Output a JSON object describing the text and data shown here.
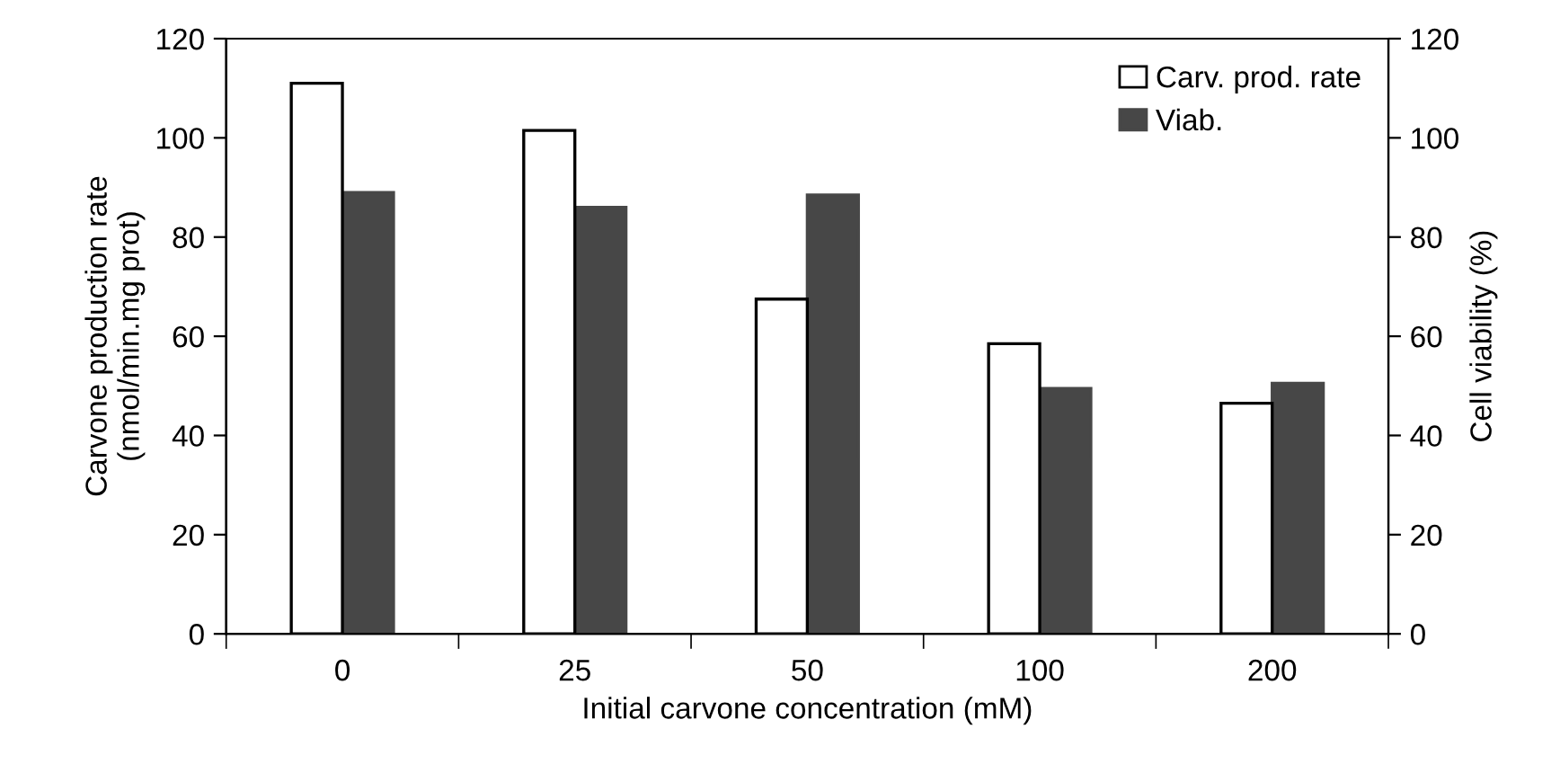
{
  "chart_data": {
    "type": "bar",
    "xlabel": "Initial carvone concentration (mM)",
    "ylabel": "Carvone production rate\n(nmol/min.mg prot)",
    "y2label": "Cell viability (%)",
    "categories": [
      "0",
      "25",
      "50",
      "100",
      "200"
    ],
    "series": [
      {
        "name": "Carv. prod. rate",
        "color": "#ffffff",
        "values": [
          111,
          101.5,
          67.5,
          58.5,
          46.5
        ]
      },
      {
        "name": "Viab.",
        "color": "#474747",
        "values": [
          89,
          86,
          88.5,
          49.5,
          50.5
        ],
        "axis": "y2"
      }
    ],
    "ylim": [
      0,
      120
    ],
    "yticks": [
      0,
      20,
      40,
      60,
      80,
      100,
      120
    ],
    "y2lim": [
      0,
      120
    ],
    "y2ticks": [
      0,
      20,
      40,
      60,
      80,
      100,
      120
    ],
    "grid": false,
    "legend": "top right"
  }
}
